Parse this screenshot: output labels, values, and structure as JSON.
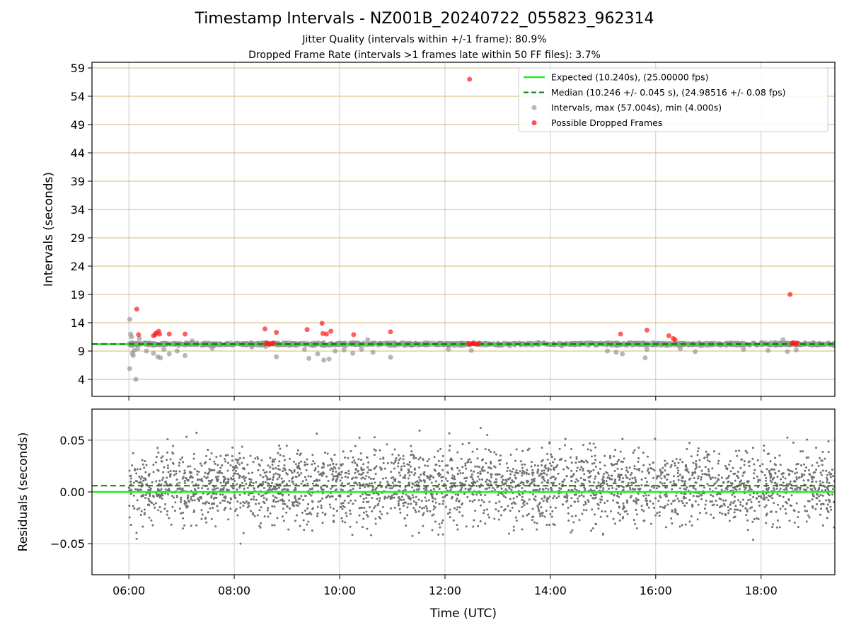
{
  "title": "Timestamp Intervals - NZ001B_20240722_055823_962314",
  "subtitle1": "Jitter Quality (intervals within +/-1 frame): 80.9%",
  "subtitle2": "Dropped Frame Rate (intervals >1 frames late within 50 FF files): 3.7%",
  "colors": {
    "expected": "#22ee22",
    "median": "#117711",
    "interval_points": "#909090",
    "dropped_points": "#ff1a1a",
    "residual_points": "#707070",
    "grid": "#cccccc",
    "frame_lines": "#d6b870"
  },
  "chart_data": [
    {
      "type": "scatter",
      "panel": "top",
      "ylabel": "Intervals (seconds)",
      "xlabel": "",
      "xlim": [
        "05:18",
        "19:24"
      ],
      "ylim": [
        1,
        60
      ],
      "yticks": [
        "4",
        "9",
        "14",
        "19",
        "24",
        "29",
        "34",
        "39",
        "44",
        "49",
        "54",
        "59"
      ],
      "xticks": [
        "06:00",
        "08:00",
        "10:00",
        "12:00",
        "14:00",
        "16:00",
        "18:00"
      ],
      "grid": true,
      "reference_lines": [
        {
          "name": "Expected (10.240s), (25.00000 fps)",
          "y": 10.24,
          "style": "solid"
        },
        {
          "name": "Median (10.246 +/- 0.045 s), (24.98516 +/- 0.08 fps)",
          "y": 10.246,
          "style": "dashed"
        }
      ],
      "series": [
        {
          "name": "Intervals, max (57.004s), min (4.000s)",
          "points": [
            [
              "06:01",
              14.6
            ],
            [
              "06:02",
              12.0
            ],
            [
              "06:03",
              11.5
            ],
            [
              "06:04",
              8.6
            ],
            [
              "06:05",
              8.2
            ],
            [
              "06:06",
              9.1
            ],
            [
              "06:01",
              5.9
            ],
            [
              "06:08",
              4.0
            ],
            [
              "06:10",
              9.4
            ],
            [
              "06:12",
              11.2
            ],
            [
              "06:20",
              9.0
            ],
            [
              "06:28",
              8.6
            ],
            [
              "06:33",
              8.0
            ],
            [
              "06:36",
              7.8
            ],
            [
              "06:40",
              9.3
            ],
            [
              "06:46",
              8.5
            ],
            [
              "06:55",
              9.0
            ],
            [
              "07:04",
              8.2
            ],
            [
              "07:12",
              10.8
            ],
            [
              "07:35",
              9.5
            ],
            [
              "08:20",
              9.7
            ],
            [
              "08:36",
              9.8
            ],
            [
              "08:48",
              8.0
            ],
            [
              "09:20",
              9.3
            ],
            [
              "09:25",
              7.7
            ],
            [
              "09:35",
              8.5
            ],
            [
              "09:42",
              7.4
            ],
            [
              "09:48",
              7.6
            ],
            [
              "09:55",
              9.0
            ],
            [
              "10:05",
              9.2
            ],
            [
              "10:15",
              8.6
            ],
            [
              "10:25",
              9.3
            ],
            [
              "10:32",
              11.0
            ],
            [
              "10:38",
              8.8
            ],
            [
              "10:58",
              7.9
            ],
            [
              "12:04",
              9.3
            ],
            [
              "12:30",
              9.1
            ],
            [
              "15:05",
              9.0
            ],
            [
              "15:15",
              8.8
            ],
            [
              "15:22",
              8.5
            ],
            [
              "15:48",
              7.8
            ],
            [
              "15:50",
              9.3
            ],
            [
              "16:28",
              9.4
            ],
            [
              "16:45",
              8.9
            ],
            [
              "17:40",
              9.3
            ],
            [
              "18:08",
              9.1
            ],
            [
              "18:25",
              11.0
            ],
            [
              "18:30",
              8.9
            ],
            [
              "18:40",
              9.2
            ]
          ]
        },
        {
          "name": "Possible Dropped Frames",
          "points": [
            [
              "06:09",
              16.4
            ],
            [
              "06:11",
              11.9
            ],
            [
              "06:28",
              11.7
            ],
            [
              "06:31",
              12.2
            ],
            [
              "06:34",
              12.5
            ],
            [
              "06:30",
              11.9
            ],
            [
              "06:35",
              12.0
            ],
            [
              "06:46",
              12.0
            ],
            [
              "07:04",
              12.0
            ],
            [
              "08:35",
              12.9
            ],
            [
              "08:36",
              10.3
            ],
            [
              "08:38",
              10.4
            ],
            [
              "08:40",
              10.2
            ],
            [
              "08:43",
              10.3
            ],
            [
              "08:45",
              10.4
            ],
            [
              "08:48",
              12.3
            ],
            [
              "09:23",
              12.8
            ],
            [
              "09:40",
              13.9
            ],
            [
              "09:41",
              12.1
            ],
            [
              "09:45",
              12.0
            ],
            [
              "09:50",
              12.5
            ],
            [
              "10:16",
              11.9
            ],
            [
              "10:58",
              12.4
            ],
            [
              "12:28",
              57.0
            ],
            [
              "12:27",
              10.3
            ],
            [
              "12:29",
              10.2
            ],
            [
              "12:31",
              10.3
            ],
            [
              "12:33",
              10.3
            ],
            [
              "12:36",
              10.2
            ],
            [
              "12:38",
              10.3
            ],
            [
              "15:20",
              12.0
            ],
            [
              "15:50",
              12.7
            ],
            [
              "16:15",
              11.7
            ],
            [
              "16:20",
              11.2
            ],
            [
              "16:22",
              11.0
            ],
            [
              "18:33",
              19.0
            ],
            [
              "18:35",
              10.3
            ],
            [
              "18:37",
              10.5
            ],
            [
              "18:39",
              10.2
            ],
            [
              "18:41",
              10.4
            ]
          ]
        }
      ]
    },
    {
      "type": "scatter",
      "panel": "bottom",
      "xlabel": "Time (UTC)",
      "ylabel": "Residuals (seconds)",
      "xlim": [
        "05:18",
        "19:24"
      ],
      "ylim": [
        -0.08,
        0.08
      ],
      "yticks": [
        "0.05",
        "0.00",
        "−0.05"
      ],
      "xticks": [
        "06:00",
        "08:00",
        "10:00",
        "12:00",
        "14:00",
        "16:00",
        "18:00"
      ],
      "grid": true,
      "reference_lines": [
        {
          "name": "Expected",
          "y": 0.0,
          "style": "solid"
        },
        {
          "name": "Median",
          "y": 0.006,
          "style": "dashed"
        }
      ],
      "series": [
        {
          "name": "Residuals",
          "x_range": [
            "06:00",
            "19:24"
          ],
          "count": 3000,
          "mean": 0.006,
          "std": 0.025
        }
      ]
    }
  ]
}
